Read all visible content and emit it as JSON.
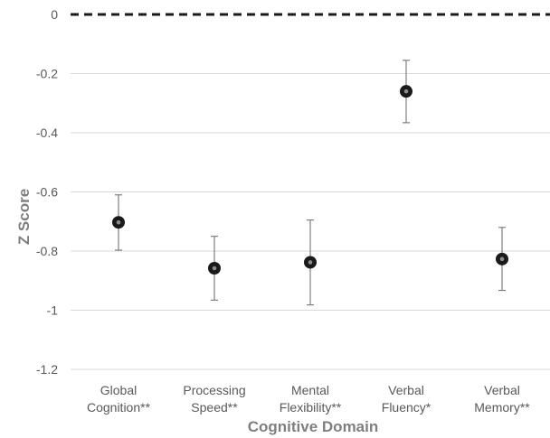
{
  "chart_data": {
    "type": "scatter",
    "title": "",
    "xlabel": "Cognitive Domain",
    "ylabel": "Z Score",
    "ylim": [
      -1.2,
      0
    ],
    "y_ticks": [
      0,
      -0.2,
      -0.4,
      -0.6,
      -0.8,
      -1,
      -1.2
    ],
    "y_tick_labels": [
      "0",
      "-0.2",
      "-0.4",
      "-0.6",
      "-0.8",
      "-1",
      "-1.2"
    ],
    "grid": true,
    "reference_line": {
      "value": 0,
      "style": "dashed"
    },
    "categories": [
      [
        "Global",
        "Cognition**"
      ],
      [
        "Processing",
        "Speed**"
      ],
      [
        "Mental",
        "Flexibility**"
      ],
      [
        "Verbal",
        "Fluency*"
      ],
      [
        "Verbal",
        "Memory**"
      ]
    ],
    "series": [
      {
        "values": [
          -0.703,
          -0.858,
          -0.838,
          -0.26,
          -0.827
        ],
        "error_upper": [
          -0.61,
          -0.75,
          -0.695,
          -0.155,
          -0.72
        ],
        "error_lower": [
          -0.797,
          -0.966,
          -0.982,
          -0.366,
          -0.933
        ]
      }
    ],
    "colors": {
      "marker": "#1a1a1a",
      "marker_center": "#8c8c8c",
      "grid": "#d9d9d9",
      "error_bar": "#7f7f7f",
      "reference_line": "#1a1a1a",
      "axis_text": "#595959"
    }
  }
}
